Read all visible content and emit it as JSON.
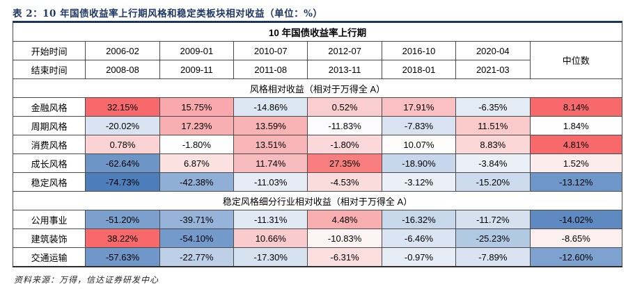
{
  "title": "表 2：10 年国债收益率上行期风格和稳定类板块相对收益（单位：%）",
  "source_note": "资料来源：万得，信达证券研发中心",
  "colors": {
    "title_navy": "#1F3864",
    "table_top_border": "#17375E",
    "heat_red_max": "#F8696B",
    "heat_mid_white": "#FCFCFF",
    "heat_blue_min": "#4C7EBB"
  },
  "table": {
    "span_header": "10 年国债收益率上行期",
    "start_row_label": "开始时间",
    "end_row_label": "结束时间",
    "median_label": "中位数",
    "start_dates": [
      "2006-02",
      "2009-01",
      "2010-07",
      "2012-07",
      "2016-10",
      "2020-04"
    ],
    "end_dates": [
      "2008-08",
      "2009-11",
      "2011-08",
      "2013-11",
      "2018-01",
      "2021-03"
    ],
    "sections": [
      {
        "header": "风格相对收益（相对于万得全 A）",
        "rows": [
          {
            "label": "金融风格",
            "cells": [
              {
                "v": "32.15%",
                "bg": "#F8696B"
              },
              {
                "v": "15.75%",
                "bg": "#F9A9AB"
              },
              {
                "v": "-14.86%",
                "bg": "#DDE7F3"
              },
              {
                "v": "0.52%",
                "bg": "#FACDCE"
              },
              {
                "v": "17.91%",
                "bg": "#FAC0C2"
              },
              {
                "v": "-6.35%",
                "bg": "#E3EBF5"
              }
            ],
            "median": {
              "v": "8.14%",
              "bg": "#F8696B"
            }
          },
          {
            "label": "周期风格",
            "cells": [
              {
                "v": "-20.02%",
                "bg": "#D9E3F1"
              },
              {
                "v": "17.23%",
                "bg": "#F8AFB1"
              },
              {
                "v": "13.59%",
                "bg": "#F8B3B5"
              },
              {
                "v": "-11.83%",
                "bg": "#FCFCFF"
              },
              {
                "v": "-7.83%",
                "bg": "#D8E2F1"
              },
              {
                "v": "11.51%",
                "bg": "#FACACB"
              }
            ],
            "median": {
              "v": "1.84%",
              "bg": "#FEFEFF"
            }
          },
          {
            "label": "消费风格",
            "cells": [
              {
                "v": "0.78%",
                "bg": "#FBD3D4"
              },
              {
                "v": "-1.80%",
                "bg": "#FEFEFF"
              },
              {
                "v": "13.51%",
                "bg": "#F8B5B7"
              },
              {
                "v": "-1.80%",
                "bg": "#FBD9DA"
              },
              {
                "v": "10.07%",
                "bg": "#FEFCFC"
              },
              {
                "v": "8.83%",
                "bg": "#FBD7D7"
              }
            ],
            "median": {
              "v": "4.81%",
              "bg": "#F8696B"
            }
          },
          {
            "label": "成长风格",
            "cells": [
              {
                "v": "-62.64%",
                "bg": "#6D95C6"
              },
              {
                "v": "6.87%",
                "bg": "#FCE1E1"
              },
              {
                "v": "11.74%",
                "bg": "#F9BCBE"
              },
              {
                "v": "27.35%",
                "bg": "#F87D7F"
              },
              {
                "v": "-18.90%",
                "bg": "#C6D6EB"
              },
              {
                "v": "-3.84%",
                "bg": "#EBF0F8"
              }
            ],
            "median": {
              "v": "1.52%",
              "bg": "#FDECEC"
            }
          },
          {
            "label": "稳定风格",
            "cells": [
              {
                "v": "-74.73%",
                "bg": "#4C7EBB"
              },
              {
                "v": "-42.38%",
                "bg": "#90AFD7"
              },
              {
                "v": "-11.03%",
                "bg": "#E5ECF6"
              },
              {
                "v": "-4.53%",
                "bg": "#FBDCDC"
              },
              {
                "v": "-3.12%",
                "bg": "#EAEFF8"
              },
              {
                "v": "-15.20%",
                "bg": "#CDDBEE"
              }
            ],
            "median": {
              "v": "-13.12%",
              "bg": "#6E96C8"
            }
          }
        ]
      },
      {
        "header": "稳定风格细分行业相对收益（相对于万得全 A）",
        "rows": [
          {
            "label": "公用事业",
            "cells": [
              {
                "v": "-51.20%",
                "bg": "#7BA0CE"
              },
              {
                "v": "-39.71%",
                "bg": "#96B4DA"
              },
              {
                "v": "-11.31%",
                "bg": "#E1E9F4"
              },
              {
                "v": "4.48%",
                "bg": "#F9AEB0"
              },
              {
                "v": "-16.32%",
                "bg": "#C8D8EB"
              },
              {
                "v": "-11.72%",
                "bg": "#D6E1F0"
              }
            ],
            "median": {
              "v": "-14.02%",
              "bg": "#5E8AC1"
            }
          },
          {
            "label": "建筑装饰",
            "cells": [
              {
                "v": "38.22%",
                "bg": "#F8696B"
              },
              {
                "v": "-54.10%",
                "bg": "#7499CB"
              },
              {
                "v": "10.66%",
                "bg": "#FACBCC"
              },
              {
                "v": "-10.83%",
                "bg": "#FDF5F5"
              },
              {
                "v": "-6.46%",
                "bg": "#DAE4F2"
              },
              {
                "v": "-25.23%",
                "bg": "#B2C9E4"
              }
            ],
            "median": {
              "v": "-8.65%",
              "bg": "#FCEFEF"
            }
          },
          {
            "label": "交通运输",
            "cells": [
              {
                "v": "-57.63%",
                "bg": "#7097C9"
              },
              {
                "v": "-22.77%",
                "bg": "#BDD0E8"
              },
              {
                "v": "-17.30%",
                "bg": "#D7E2F0"
              },
              {
                "v": "-6.31%",
                "bg": "#FBDEDE"
              },
              {
                "v": "-0.97%",
                "bg": "#E7EDF7"
              },
              {
                "v": "-7.89%",
                "bg": "#D9E3F1"
              }
            ],
            "median": {
              "v": "-12.60%",
              "bg": "#7EA2CF"
            }
          }
        ]
      }
    ]
  }
}
